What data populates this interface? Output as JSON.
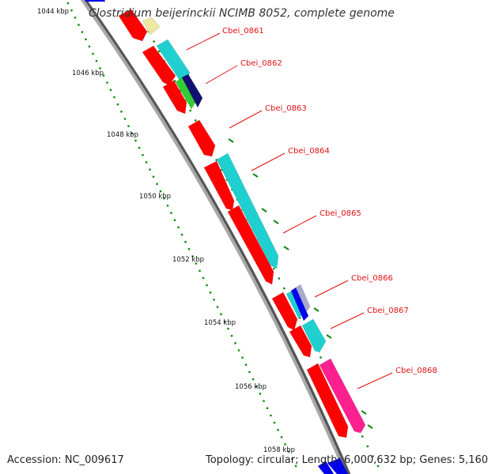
{
  "title": "Clostridium beijerinckii NCIMB 8052, complete genome",
  "accession": "Accession: NC_009617",
  "summary": "Topology: circular; Length: 6,000,632 bp; Genes: 5,160",
  "scale_labels": [
    "1044 kbp",
    "1046 kbp",
    "1048 kbp",
    "1050 kbp",
    "1052 kbp",
    "1054 kbp",
    "1056 kbp",
    "1058 kbp"
  ],
  "gene_labels": [
    "Cbei_0861",
    "Cbei_0862",
    "Cbei_0863",
    "Cbei_0864",
    "Cbei_0865",
    "Cbei_0866",
    "Cbei_0867",
    "Cbei_0868"
  ],
  "colors": {
    "forward_strand": "#ff0000",
    "reverse_cyan": "#20d0d0",
    "reverse_magenta": "#ff2090",
    "navy": "#101070",
    "green": "#33cc33",
    "blue": "#0000ee",
    "pale_yellow": "#eee8a0",
    "backbone": "#999999",
    "tick_green": "#118811",
    "label_red": "#e01010"
  }
}
